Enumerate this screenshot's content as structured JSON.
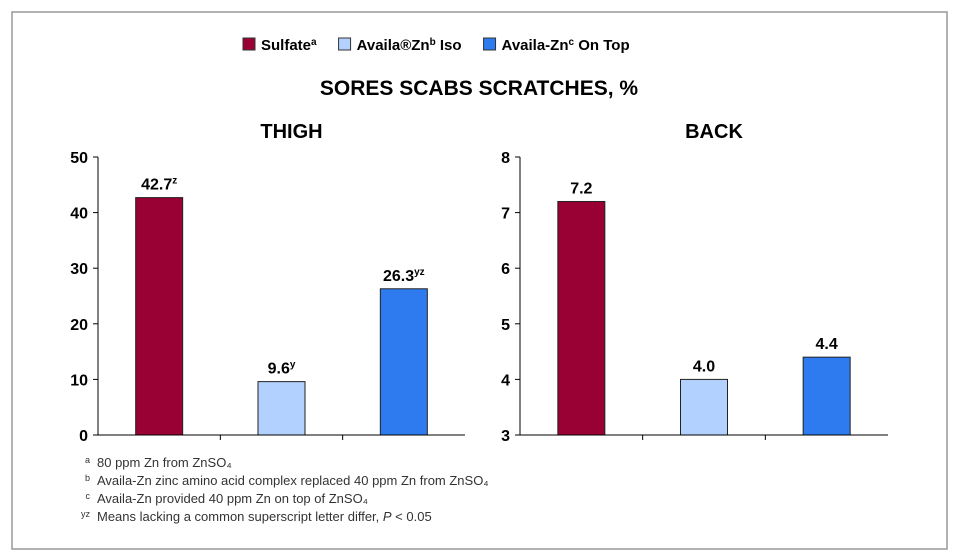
{
  "title": "SORES SCABS SCRATCHES, %",
  "legend": [
    {
      "name": "Sulfate",
      "superscript": "a",
      "color": "#990033"
    },
    {
      "name": "Availa®Zn",
      "superscript": "b",
      "suffix": " Iso",
      "color": "#b3d1ff"
    },
    {
      "name": "Availa-Zn",
      "superscript": "c",
      "suffix": " On Top",
      "color": "#2e7bf0"
    }
  ],
  "chart_data": [
    {
      "type": "bar",
      "title": "THIGH",
      "values": [
        42.7,
        9.6,
        26.3
      ],
      "value_superscripts": [
        "z",
        "y",
        "yz"
      ],
      "colors": [
        "#990033",
        "#b3d1ff",
        "#2e7bf0"
      ],
      "ylim": [
        0,
        50
      ],
      "yticks": [
        0,
        10,
        20,
        30,
        40,
        50
      ]
    },
    {
      "type": "bar",
      "title": "BACK",
      "values": [
        7.2,
        4,
        4.4
      ],
      "value_labels": [
        "7.2",
        "4.0",
        "4.4"
      ],
      "colors": [
        "#990033",
        "#b3d1ff",
        "#2e7bf0"
      ],
      "ylim": [
        3,
        8
      ],
      "yticks": [
        3,
        4,
        5,
        6,
        7,
        8
      ]
    }
  ],
  "footnotes": [
    {
      "marker": "a",
      "text": "80 ppm Zn from ZnSO₄"
    },
    {
      "marker": "b",
      "text": "Availa-Zn zinc amino acid complex replaced 40 ppm Zn from ZnSO₄"
    },
    {
      "marker": "c",
      "text": "Availa-Zn provided 40 ppm Zn on top of ZnSO₄"
    },
    {
      "marker": "yz",
      "text": "Means lacking a common superscript letter differ, ",
      "italic": "P",
      "tail": " < 0.05"
    }
  ]
}
